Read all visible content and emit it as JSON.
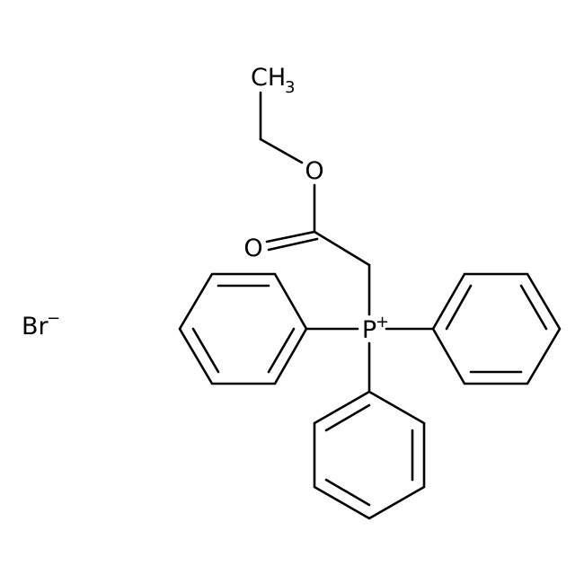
{
  "atoms": [
    {
      "label": "CH",
      "subscript": "3"
    },
    {
      "label": "O"
    },
    {
      "label": "O"
    },
    {
      "label": "P",
      "charge": "+"
    },
    {
      "label": "Br",
      "charge": "−"
    }
  ]
}
